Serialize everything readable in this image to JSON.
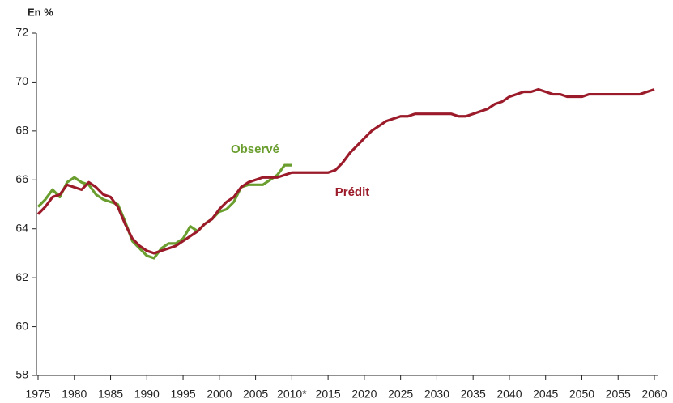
{
  "chart_data": {
    "type": "line",
    "ylabel": "En %",
    "x": [
      1975,
      1976,
      1977,
      1978,
      1979,
      1980,
      1981,
      1982,
      1983,
      1984,
      1985,
      1986,
      1987,
      1988,
      1989,
      1990,
      1991,
      1992,
      1993,
      1994,
      1995,
      1996,
      1997,
      1998,
      1999,
      2000,
      2001,
      2002,
      2003,
      2004,
      2005,
      2006,
      2007,
      2008,
      2009,
      2010,
      2011,
      2012,
      2013,
      2014,
      2015,
      2016,
      2017,
      2018,
      2019,
      2020,
      2021,
      2022,
      2023,
      2024,
      2025,
      2026,
      2027,
      2028,
      2029,
      2030,
      2031,
      2032,
      2033,
      2034,
      2035,
      2036,
      2037,
      2038,
      2039,
      2040,
      2041,
      2042,
      2043,
      2044,
      2045,
      2046,
      2047,
      2048,
      2049,
      2050,
      2051,
      2052,
      2053,
      2054,
      2055,
      2056,
      2057,
      2058,
      2059,
      2060
    ],
    "series": [
      {
        "name": "Observé",
        "color": "#6a9e2f",
        "values": [
          64.9,
          65.2,
          65.6,
          65.3,
          65.9,
          66.1,
          65.9,
          65.8,
          65.4,
          65.2,
          65.1,
          65.0,
          64.3,
          63.5,
          63.2,
          62.9,
          62.8,
          63.2,
          63.4,
          63.4,
          63.6,
          64.1,
          63.9,
          64.2,
          64.4,
          64.7,
          64.8,
          65.1,
          65.7,
          65.8,
          65.8,
          65.8,
          66.0,
          66.2,
          66.6,
          66.6,
          null,
          null,
          null,
          null,
          null,
          null,
          null,
          null,
          null,
          null,
          null,
          null,
          null,
          null,
          null,
          null,
          null,
          null,
          null,
          null,
          null,
          null,
          null,
          null,
          null,
          null,
          null,
          null,
          null,
          null,
          null,
          null,
          null,
          null,
          null,
          null,
          null,
          null,
          null,
          null,
          null,
          null,
          null,
          null,
          null,
          null,
          null,
          null,
          null,
          null
        ]
      },
      {
        "name": "Prédit",
        "color": "#9b1b2a",
        "values": [
          64.6,
          64.9,
          65.3,
          65.4,
          65.8,
          65.7,
          65.6,
          65.9,
          65.7,
          65.4,
          65.3,
          64.9,
          64.2,
          63.6,
          63.3,
          63.1,
          63.0,
          63.1,
          63.2,
          63.3,
          63.5,
          63.7,
          63.9,
          64.2,
          64.4,
          64.8,
          65.1,
          65.3,
          65.7,
          65.9,
          66.0,
          66.1,
          66.1,
          66.1,
          66.2,
          66.3,
          66.3,
          66.3,
          66.3,
          66.3,
          66.3,
          66.4,
          66.7,
          67.1,
          67.4,
          67.7,
          68.0,
          68.2,
          68.4,
          68.5,
          68.6,
          68.6,
          68.7,
          68.7,
          68.7,
          68.7,
          68.7,
          68.7,
          68.6,
          68.6,
          68.7,
          68.8,
          68.9,
          69.1,
          69.2,
          69.4,
          69.5,
          69.6,
          69.6,
          69.7,
          69.6,
          69.5,
          69.5,
          69.4,
          69.4,
          69.4,
          69.5,
          69.5,
          69.5,
          69.5,
          69.5,
          69.5,
          69.5,
          69.5,
          69.6,
          69.7
        ]
      }
    ],
    "xlim": [
      1975,
      2060
    ],
    "xticks": [
      1975,
      1980,
      1985,
      1990,
      1995,
      2000,
      2005,
      {
        "value": 2010,
        "label": "2010*"
      },
      2015,
      2020,
      2025,
      2030,
      2035,
      2040,
      2045,
      2050,
      2055,
      2060
    ],
    "ylim": [
      58,
      72
    ],
    "yticks": [
      58,
      60,
      62,
      64,
      66,
      68,
      70,
      72
    ],
    "grid": false
  }
}
